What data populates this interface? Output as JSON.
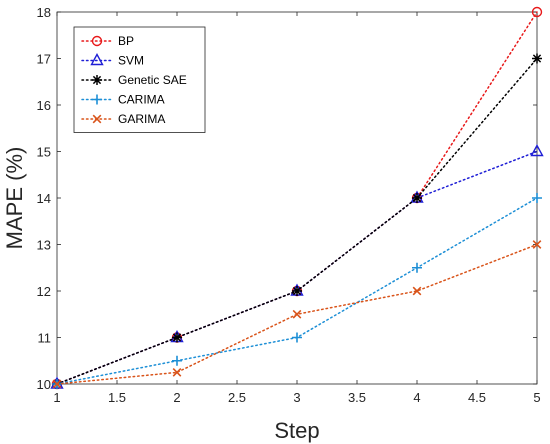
{
  "chart_data": {
    "type": "line",
    "xlabel": "Step",
    "ylabel": "MAPE (%)",
    "xlim": [
      1,
      5
    ],
    "ylim": [
      10,
      18
    ],
    "x_ticks": [
      "1",
      "1.5",
      "2",
      "2.5",
      "3",
      "3.5",
      "4",
      "4.5",
      "5"
    ],
    "y_ticks": [
      "10",
      "11",
      "12",
      "13",
      "14",
      "15",
      "16",
      "17",
      "18"
    ],
    "grid": false,
    "legend_position": "top-left",
    "x": [
      1,
      2,
      3,
      4,
      5
    ],
    "series": [
      {
        "name": "BP",
        "values": [
          10,
          11,
          12,
          14,
          18
        ],
        "color": "#e8191a",
        "marker": "circle"
      },
      {
        "name": "SVM",
        "values": [
          10,
          11,
          12,
          14,
          15
        ],
        "color": "#1f1fd6",
        "marker": "triangle"
      },
      {
        "name": "Genetic SAE",
        "values": [
          10,
          11,
          12,
          14,
          17
        ],
        "color": "#000000",
        "marker": "star"
      },
      {
        "name": "CARIMA",
        "values": [
          10,
          10.5,
          11,
          12.5,
          14
        ],
        "color": "#1d8fd6",
        "marker": "plus"
      },
      {
        "name": "GARIMA",
        "values": [
          10,
          10.25,
          11.5,
          12,
          13
        ],
        "color": "#d95319",
        "marker": "cross"
      }
    ]
  }
}
